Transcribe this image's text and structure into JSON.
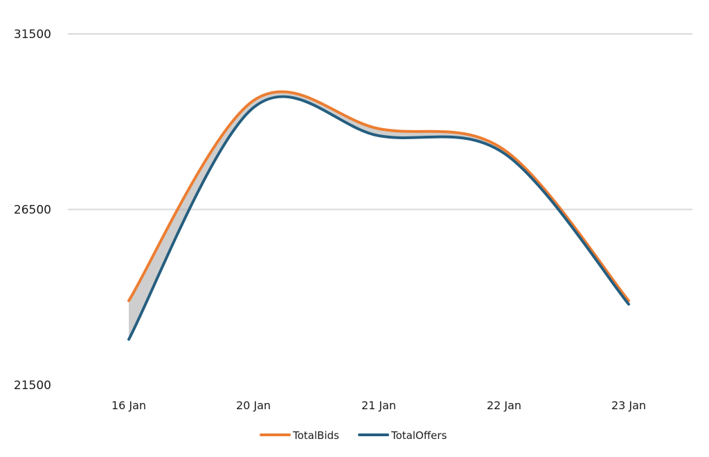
{
  "chart_data": {
    "type": "line",
    "title": "",
    "xlabel": "",
    "ylabel": "",
    "categories": [
      "16 Jan",
      "20 Jan",
      "21 Jan",
      "22 Jan",
      "23 Jan"
    ],
    "ylim": [
      21500,
      31500
    ],
    "yticks": [
      "31500",
      "26500",
      "21500"
    ],
    "grid": true,
    "legend_position": "bottom",
    "series": [
      {
        "name": "TotalBids",
        "color": "#ED7D31",
        "values": [
          23900,
          29600,
          28800,
          28200,
          23900
        ]
      },
      {
        "name": "TotalOffers",
        "color": "#255E80",
        "values": [
          22800,
          29400,
          28600,
          28100,
          23800
        ]
      }
    ],
    "band_color": "#A6A6A6"
  }
}
